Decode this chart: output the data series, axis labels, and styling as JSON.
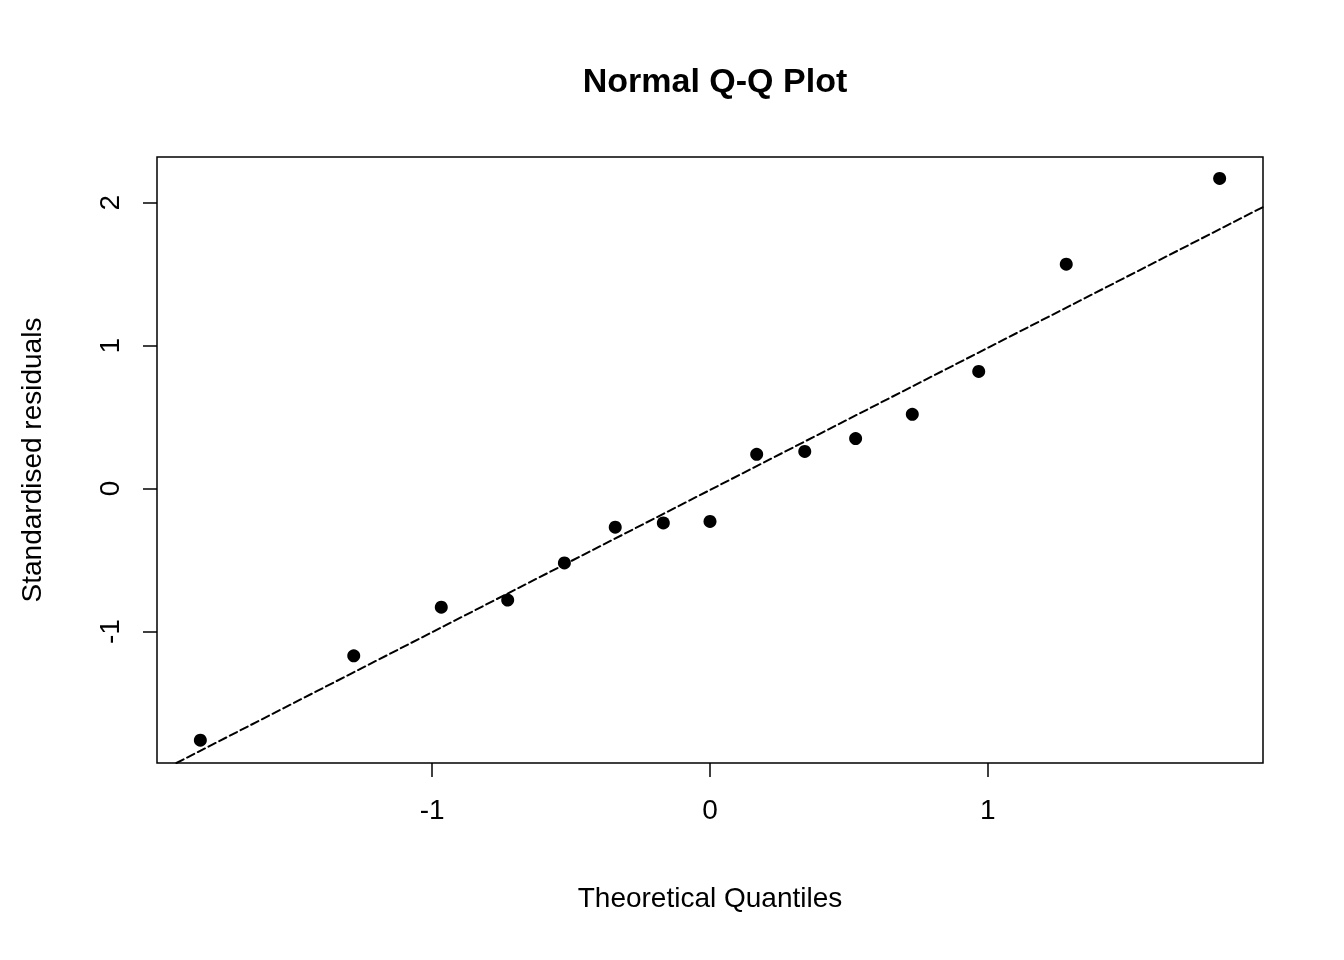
{
  "chart_data": {
    "type": "scatter",
    "title": "Normal Q-Q Plot",
    "xlabel": "Theoretical Quantiles",
    "ylabel": "Standardised residuals",
    "xlim": [
      -1.99,
      1.99
    ],
    "ylim": [
      -1.92,
      2.32
    ],
    "xticks": [
      -1,
      0,
      1
    ],
    "yticks": [
      -1,
      0,
      1,
      2
    ],
    "grid": false,
    "series": [
      {
        "marker": "circle",
        "color": "#000000",
        "x": [
          -1.834,
          -1.282,
          -0.967,
          -0.728,
          -0.524,
          -0.341,
          -0.168,
          0,
          0.168,
          0.341,
          0.524,
          0.728,
          0.967,
          1.282,
          1.834
        ],
        "values": [
          -1.76,
          -1.17,
          -0.83,
          -0.78,
          -0.52,
          -0.27,
          -0.24,
          -0.23,
          0.24,
          0.26,
          0.35,
          0.52,
          0.82,
          1.57,
          2.17
        ]
      },
      {
        "type": "line",
        "marker": "none",
        "line_style": "dashed",
        "color": "#000000",
        "x": [
          -1.92,
          1.99
        ],
        "values": [
          -1.92,
          1.97
        ]
      }
    ]
  }
}
